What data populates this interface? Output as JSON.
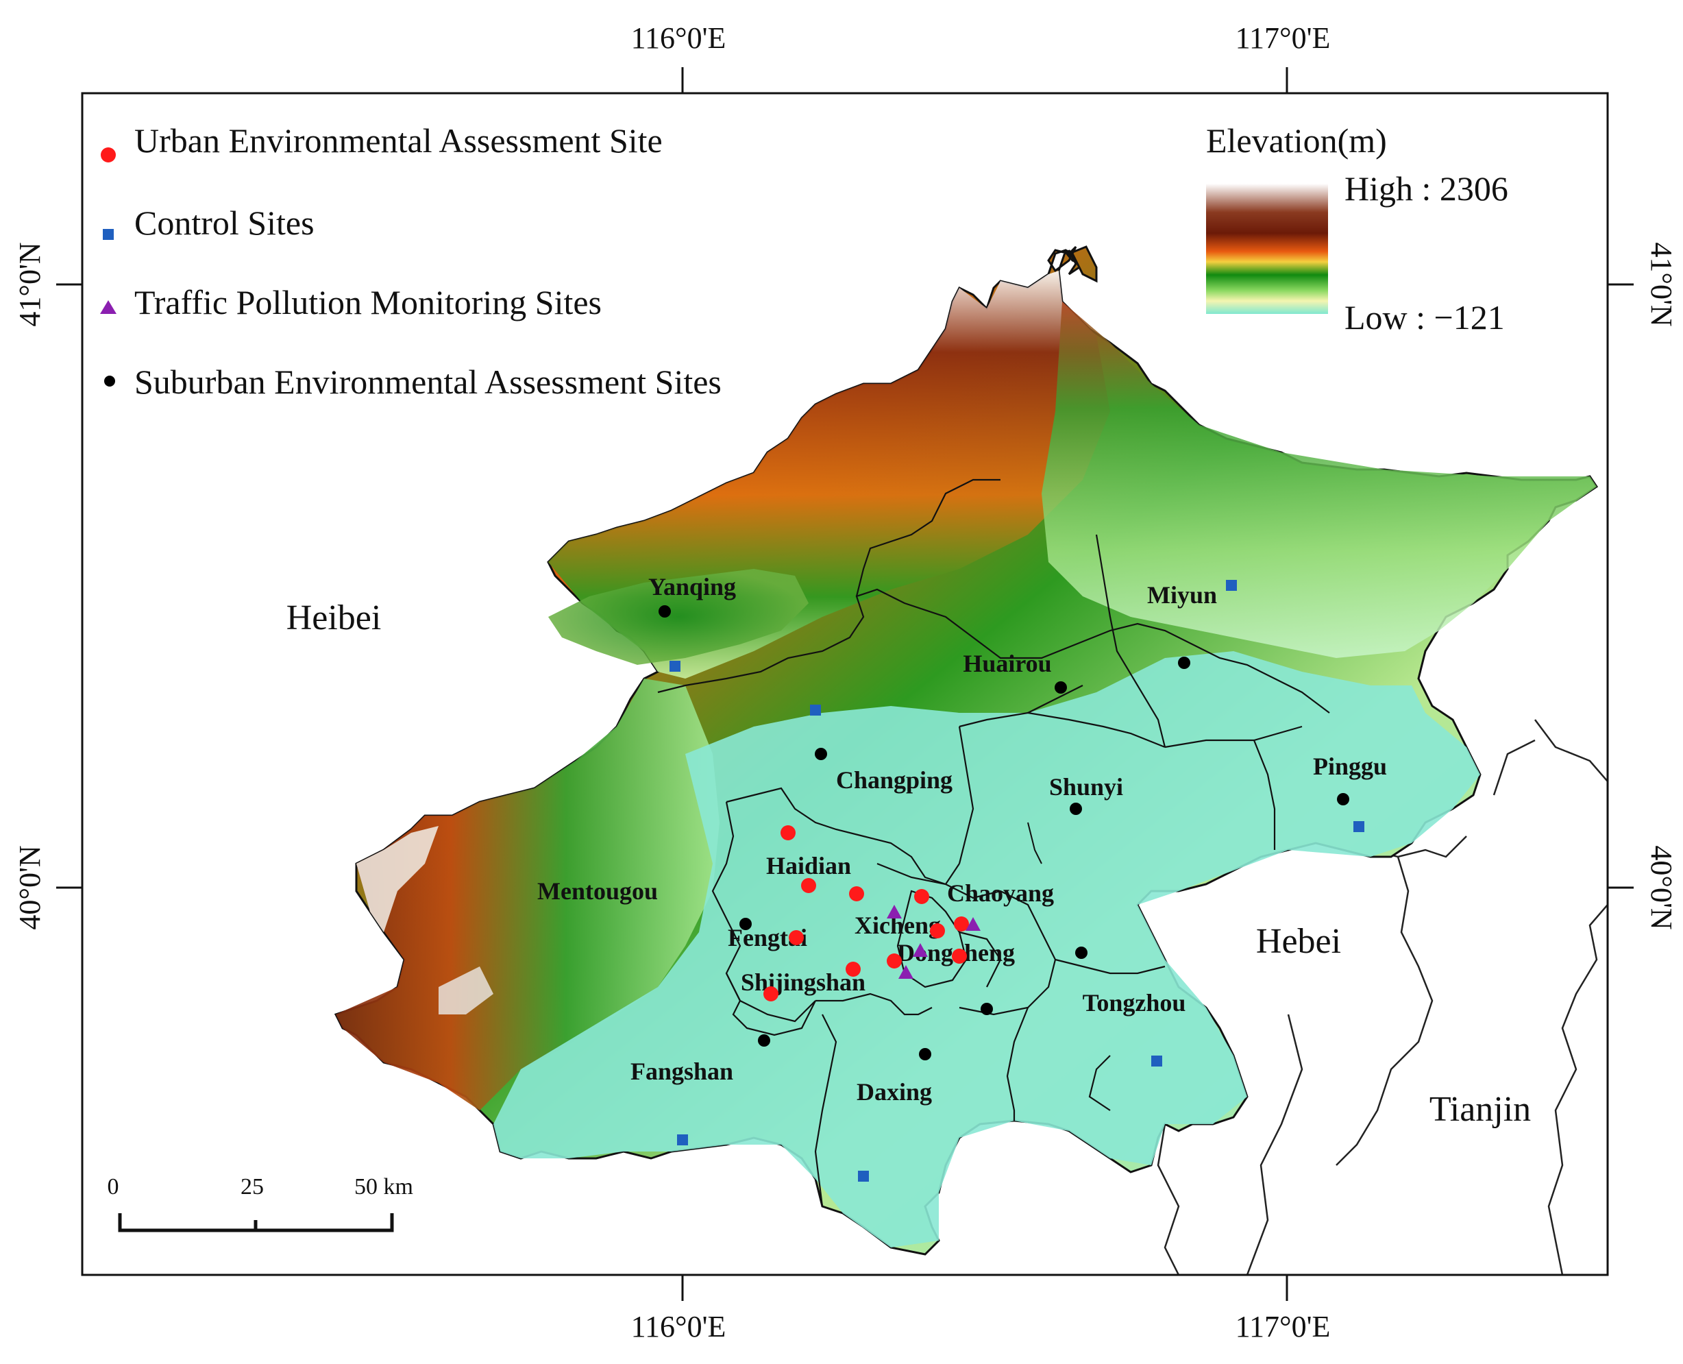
{
  "graticule": {
    "lon_left": "116°0'E",
    "lon_right": "117°0'E",
    "lat_top": "41°0'N",
    "lat_bottom": "40°0'N"
  },
  "legend": {
    "items": [
      {
        "label": "Urban Environmental Assessment Site",
        "symbol": "circle",
        "color": "#ff0000"
      },
      {
        "label": "Control Sites",
        "symbol": "square",
        "color": "#1f5fbf"
      },
      {
        "label": "Traffic Pollution Monitoring Sites",
        "symbol": "triangle",
        "color": "#8b1fb0"
      },
      {
        "label": "Suburban Environmental Assessment Sites",
        "symbol": "dot",
        "color": "#000000"
      }
    ]
  },
  "elevation_legend": {
    "title": "Elevation(m)",
    "high": "High : 2306",
    "low": "Low : −121",
    "colors": [
      "#ffffff",
      "#7a2a10",
      "#b5400f",
      "#f0a020",
      "#108a10",
      "#60c040",
      "#80e8c8"
    ]
  },
  "regions": {
    "heibei": "Heibei",
    "hebei": "Hebei",
    "tianjin": "Tianjin"
  },
  "districts": {
    "yanqing": "Yanqing",
    "miyun": "Miyun",
    "huairou": "Huairou",
    "changping": "Changping",
    "shunyi": "Shunyi",
    "pinggu": "Pinggu",
    "haidian": "Haidian",
    "mentougou": "Mentougou",
    "chaoyang": "Chaoyang",
    "xicheng": "Xicheng",
    "fengtai": "Fengtai",
    "dongcheng": "Dongcheng",
    "shijingshan": "Shijingshan",
    "tongzhou": "Tongzhou",
    "fangshan": "Fangshan",
    "daxing": "Daxing"
  },
  "scale_bar": {
    "ticks": [
      "0",
      "25",
      "50 km"
    ]
  }
}
